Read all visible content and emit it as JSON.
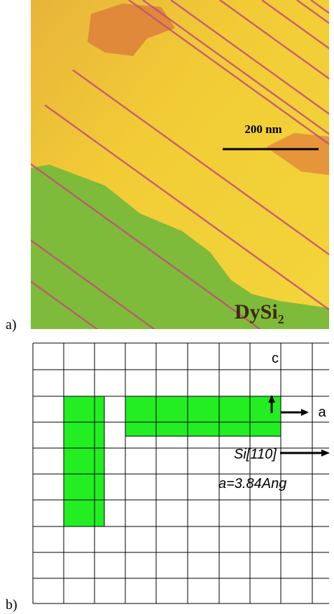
{
  "panel_a": {
    "label": "a)",
    "scale_bar": "200 nm",
    "material": "DySi",
    "material_subscript": "2"
  },
  "panel_b": {
    "label": "b)",
    "axis_c": "c",
    "axis_a": "a",
    "direction": "Si[110]",
    "lattice": "a=3.84Ang"
  }
}
